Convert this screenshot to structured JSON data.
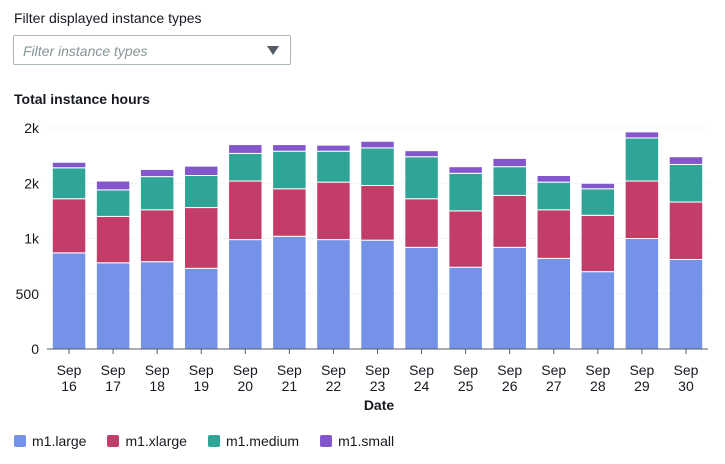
{
  "filter": {
    "label": "Filter displayed instance types",
    "placeholder": "Filter instance types"
  },
  "chart_data": {
    "type": "bar",
    "stacked": true,
    "title": "Total instance hours",
    "xlabel": "Date",
    "ylabel": "",
    "ylim": [
      0,
      2000
    ],
    "y_ticks": [
      {
        "value": 0,
        "label": "0"
      },
      {
        "value": 500,
        "label": "500"
      },
      {
        "value": 1000,
        "label": "1k"
      },
      {
        "value": 1500,
        "label": "2k"
      },
      {
        "value": 2000,
        "label": "2k"
      }
    ],
    "categories": [
      "Sep 16",
      "Sep 17",
      "Sep 18",
      "Sep 19",
      "Sep 20",
      "Sep 21",
      "Sep 22",
      "Sep 23",
      "Sep 24",
      "Sep 25",
      "Sep 26",
      "Sep 27",
      "Sep 28",
      "Sep 29",
      "Sep 30"
    ],
    "series": [
      {
        "name": "m1.large",
        "color": "#7492e7",
        "values": [
          870,
          780,
          790,
          730,
          990,
          1020,
          990,
          985,
          920,
          740,
          920,
          820,
          700,
          1000,
          810
        ]
      },
      {
        "name": "m1.xlarge",
        "color": "#c33d69",
        "values": [
          490,
          420,
          470,
          550,
          530,
          430,
          520,
          495,
          440,
          510,
          470,
          440,
          510,
          520,
          520
        ]
      },
      {
        "name": "m1.medium",
        "color": "#2ea597",
        "values": [
          280,
          240,
          300,
          290,
          250,
          340,
          280,
          340,
          380,
          340,
          260,
          250,
          240,
          390,
          340
        ]
      },
      {
        "name": "m1.small",
        "color": "#8456ce",
        "values": [
          50,
          80,
          65,
          85,
          80,
          60,
          55,
          60,
          55,
          60,
          75,
          60,
          50,
          55,
          70
        ]
      }
    ],
    "grid": true,
    "legend_position": "bottom-left"
  }
}
